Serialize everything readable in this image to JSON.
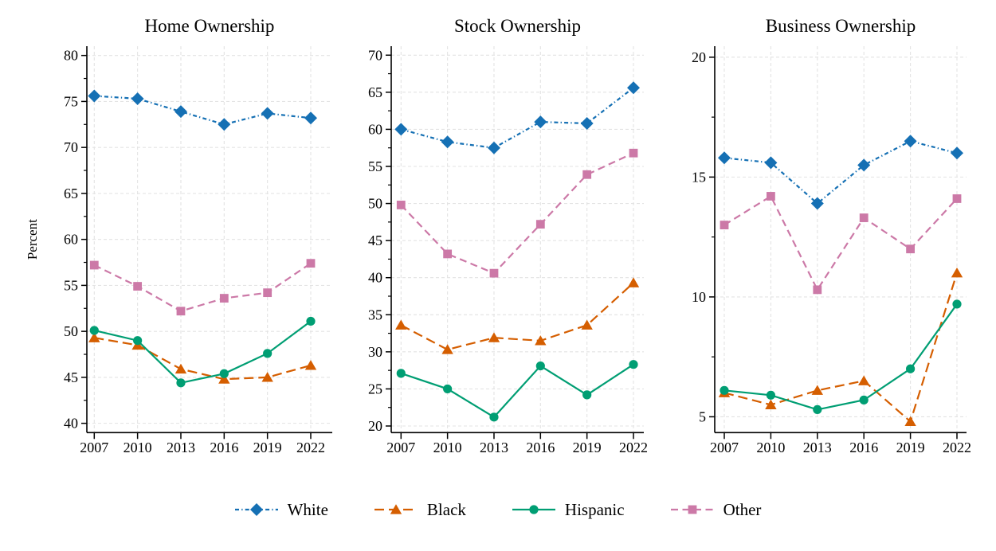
{
  "figure": {
    "background": "#ffffff",
    "x_axis_years": [
      "2007",
      "2010",
      "2013",
      "2016",
      "2019",
      "2022"
    ]
  },
  "chart_data": [
    {
      "type": "line",
      "title": "Home Ownership",
      "ylabel": "Percent",
      "x": [
        "2007",
        "2010",
        "2013",
        "2016",
        "2019",
        "2022"
      ],
      "yticks": [
        40,
        45,
        50,
        55,
        60,
        65,
        70,
        75,
        80
      ],
      "ylim": [
        38.99,
        81.01
      ],
      "grid": true,
      "series": [
        {
          "name": "White",
          "values": [
            75.6,
            75.3,
            73.9,
            72.5,
            73.7,
            73.2
          ]
        },
        {
          "name": "Black",
          "values": [
            49.3,
            48.5,
            45.9,
            44.8,
            45.0,
            46.3
          ]
        },
        {
          "name": "Hispanic",
          "values": [
            50.1,
            49.0,
            44.4,
            45.4,
            47.6,
            51.1
          ]
        },
        {
          "name": "Other",
          "values": [
            57.2,
            54.9,
            52.2,
            53.6,
            54.2,
            57.4
          ]
        }
      ]
    },
    {
      "type": "line",
      "title": "Stock Ownership",
      "ylabel": "",
      "x": [
        "2007",
        "2010",
        "2013",
        "2016",
        "2019",
        "2022"
      ],
      "yticks": [
        20,
        25,
        30,
        35,
        40,
        45,
        50,
        55,
        60,
        65,
        70
      ],
      "ylim": [
        19.11,
        71.21
      ],
      "grid": true,
      "series": [
        {
          "name": "White",
          "values": [
            60.0,
            58.3,
            57.5,
            61.0,
            60.8,
            65.6
          ]
        },
        {
          "name": "Black",
          "values": [
            33.6,
            30.3,
            31.9,
            31.5,
            33.6,
            39.3
          ]
        },
        {
          "name": "Hispanic",
          "values": [
            27.1,
            25.0,
            21.2,
            28.1,
            24.2,
            28.3
          ]
        },
        {
          "name": "Other",
          "values": [
            49.8,
            43.2,
            40.6,
            47.2,
            53.9,
            56.8
          ]
        }
      ]
    },
    {
      "type": "line",
      "title": "Business Ownership",
      "ylabel": "",
      "x": [
        "2007",
        "2010",
        "2013",
        "2016",
        "2019",
        "2022"
      ],
      "yticks": [
        5,
        10,
        15,
        20
      ],
      "ylim": [
        4.34,
        20.46
      ],
      "grid": true,
      "series": [
        {
          "name": "White",
          "values": [
            15.8,
            15.6,
            13.9,
            15.5,
            16.5,
            16.0
          ]
        },
        {
          "name": "Black",
          "values": [
            6.0,
            5.5,
            6.1,
            6.5,
            4.8,
            11.0
          ]
        },
        {
          "name": "Hispanic",
          "values": [
            6.1,
            5.9,
            5.3,
            5.7,
            7.0,
            9.7
          ]
        },
        {
          "name": "Other",
          "values": [
            13.0,
            14.2,
            10.3,
            13.3,
            12.0,
            14.1
          ]
        }
      ]
    }
  ],
  "legend": {
    "position": "bottom",
    "items": [
      {
        "label": "White",
        "color": "#1570B4",
        "marker": "diamond",
        "dash": "dash-dot"
      },
      {
        "label": "Black",
        "color": "#D55E00",
        "marker": "triangle",
        "dash": "long-dash"
      },
      {
        "label": "Hispanic",
        "color": "#009E73",
        "marker": "circle",
        "dash": "solid"
      },
      {
        "label": "Other",
        "color": "#CC79A7",
        "marker": "square",
        "dash": "dash"
      }
    ]
  },
  "style_colors": {
    "grid": "#E3E3E3",
    "axis": "#000000",
    "text": "#000000"
  }
}
